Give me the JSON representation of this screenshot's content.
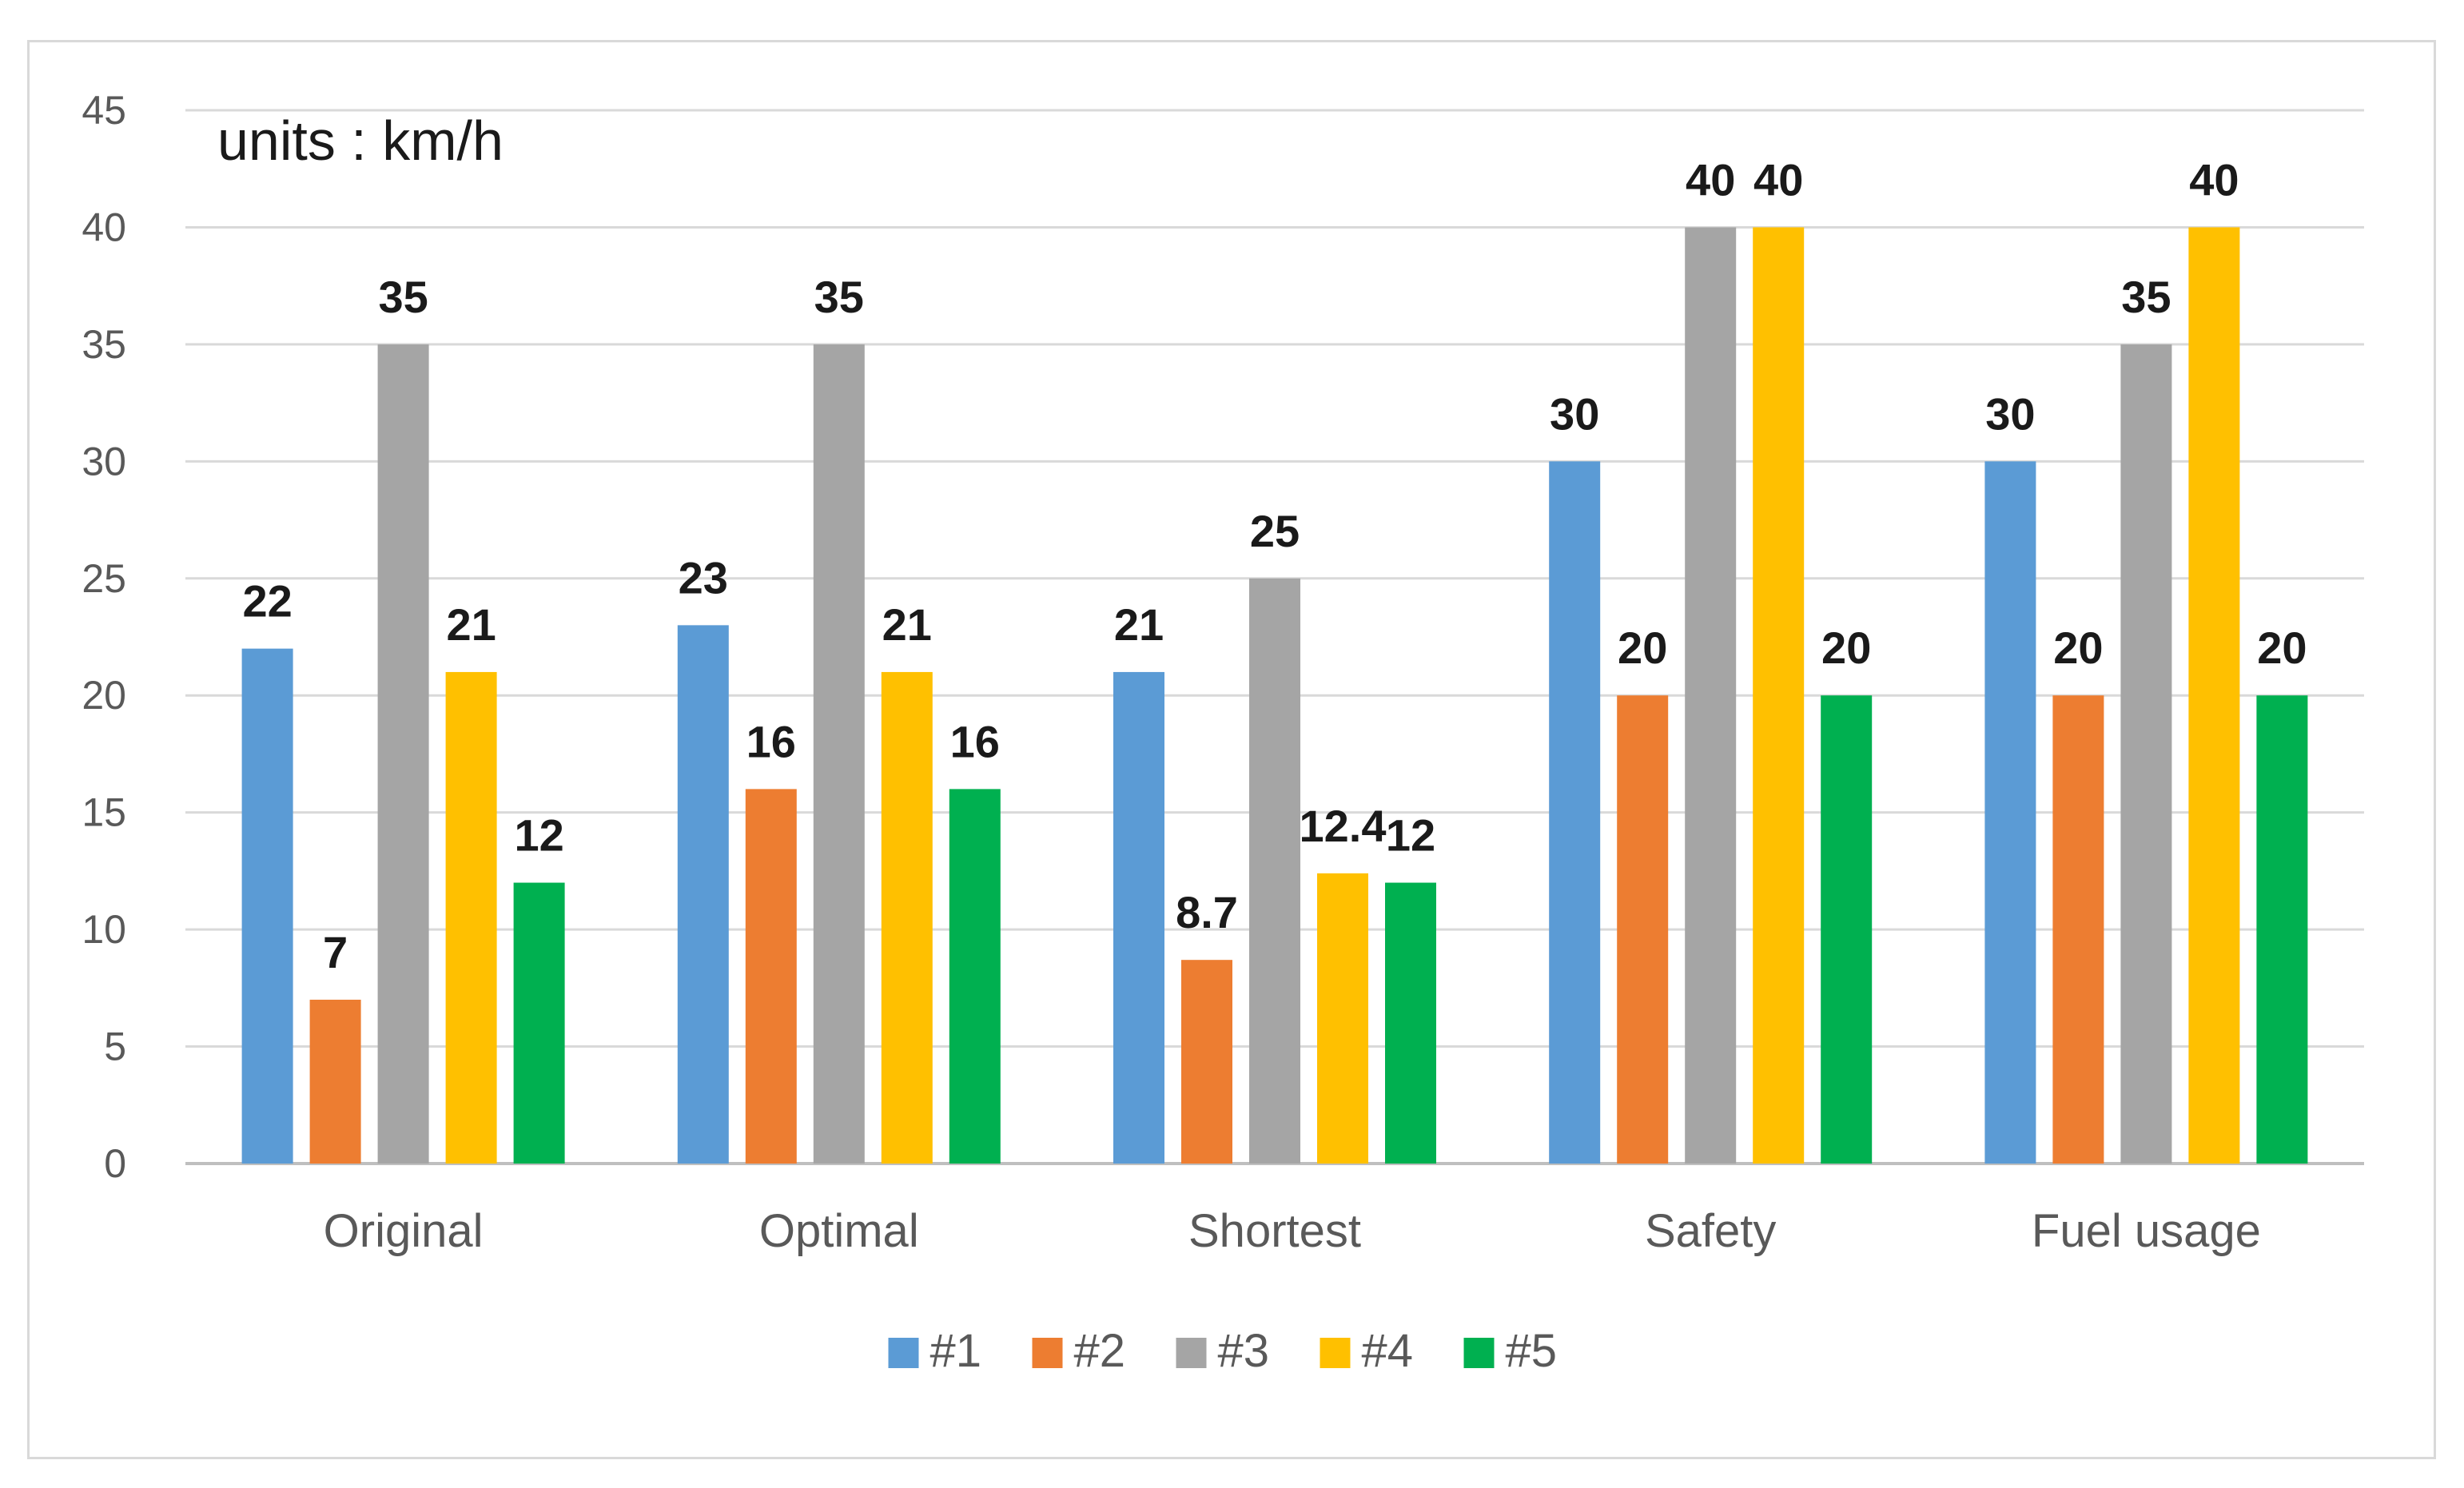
{
  "chart_data": {
    "type": "bar",
    "units_note": "units : km/h",
    "categories": [
      "Original",
      "Optimal",
      "Shortest",
      "Safety",
      "Fuel usage"
    ],
    "series": [
      {
        "name": "#1",
        "color": "#5b9bd5",
        "values": [
          22,
          23,
          21,
          30,
          30
        ]
      },
      {
        "name": "#2",
        "color": "#ed7d31",
        "values": [
          7,
          16,
          8.7,
          20,
          20
        ]
      },
      {
        "name": "#3",
        "color": "#a5a5a5",
        "values": [
          35,
          35,
          25,
          40,
          35
        ]
      },
      {
        "name": "#4",
        "color": "#ffc000",
        "values": [
          21,
          21,
          12.4,
          40,
          40
        ]
      },
      {
        "name": "#5",
        "color": "#00b050",
        "values": [
          12,
          16,
          12,
          20,
          20
        ]
      }
    ],
    "ylim": [
      0,
      45
    ],
    "yticks": [
      0,
      5,
      10,
      15,
      20,
      25,
      30,
      35,
      40,
      45
    ],
    "grid": true,
    "legend": "bottom",
    "data_labels": true
  }
}
